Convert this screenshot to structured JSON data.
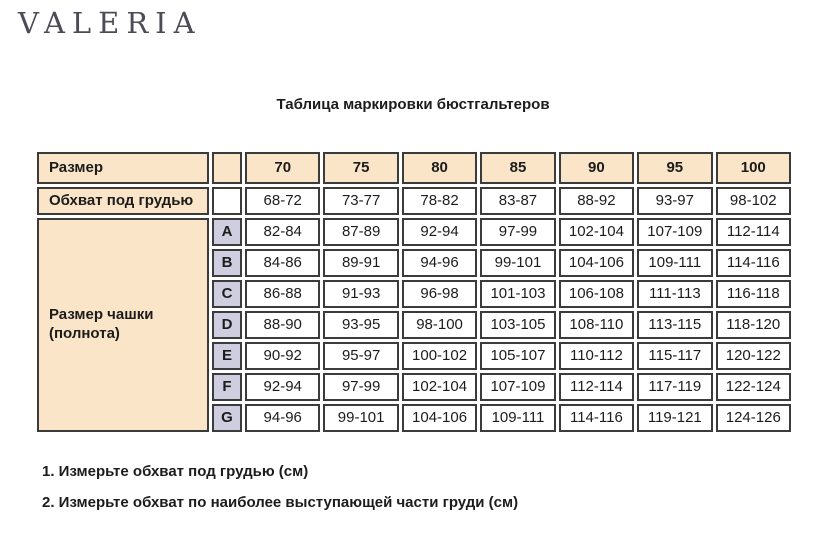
{
  "logo": "VALERIA",
  "title": "Таблица маркировки бюстгальтеров",
  "table": {
    "size_label": "Размер",
    "underbust_label": "Обхват под грудью",
    "cup_label": "Размер чашки (полнота)",
    "sizes": [
      "70",
      "75",
      "80",
      "85",
      "90",
      "95",
      "100"
    ],
    "underbust": [
      "68-72",
      "73-77",
      "78-82",
      "83-87",
      "88-92",
      "93-97",
      "98-102"
    ],
    "cups": [
      {
        "letter": "A",
        "values": [
          "82-84",
          "87-89",
          "92-94",
          "97-99",
          "102-104",
          "107-109",
          "112-114"
        ]
      },
      {
        "letter": "B",
        "values": [
          "84-86",
          "89-91",
          "94-96",
          "99-101",
          "104-106",
          "109-111",
          "114-116"
        ]
      },
      {
        "letter": "C",
        "values": [
          "86-88",
          "91-93",
          "96-98",
          "101-103",
          "106-108",
          "111-113",
          "116-118"
        ]
      },
      {
        "letter": "D",
        "values": [
          "88-90",
          "93-95",
          "98-100",
          "103-105",
          "108-110",
          "113-115",
          "118-120"
        ]
      },
      {
        "letter": "E",
        "values": [
          "90-92",
          "95-97",
          "100-102",
          "105-107",
          "110-112",
          "115-117",
          "120-122"
        ]
      },
      {
        "letter": "F",
        "values": [
          "92-94",
          "97-99",
          "102-104",
          "107-109",
          "112-114",
          "117-119",
          "122-124"
        ]
      },
      {
        "letter": "G",
        "values": [
          "94-96",
          "99-101",
          "104-106",
          "109-111",
          "114-116",
          "119-121",
          "124-126"
        ]
      }
    ]
  },
  "footnotes": [
    "1. Измерьте обхват под грудью (см)",
    "2. Измерьте обхват по наиболее выступающей части груди (см)"
  ],
  "colors": {
    "peach": "#fbe5c8",
    "lavender": "#cfcde0",
    "border": "#3b3b3b",
    "logo": "#4c4c57",
    "text": "#1c1c1c"
  }
}
